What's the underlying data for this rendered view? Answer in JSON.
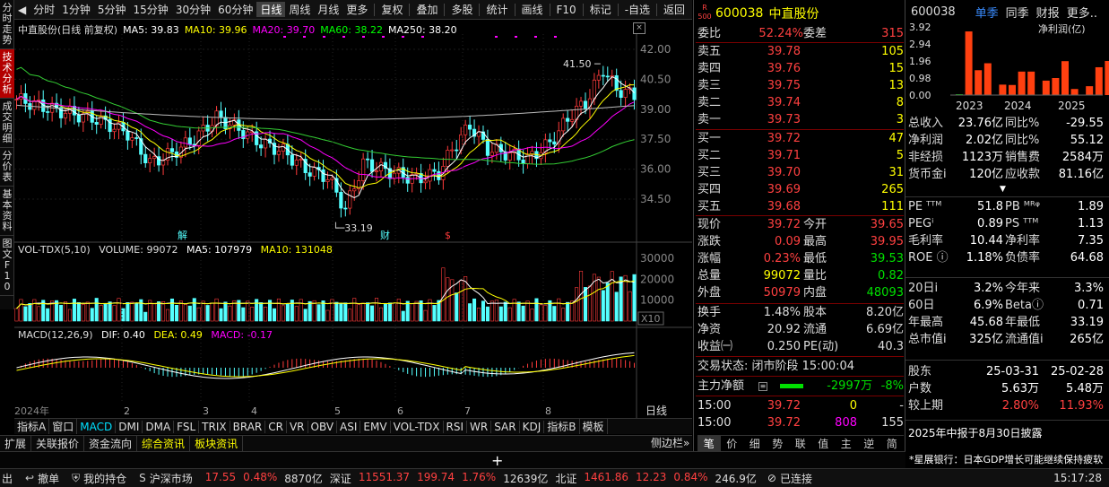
{
  "left_tabs": [
    "分时走势",
    "技术分析",
    "成交明细",
    "分价表",
    "基本资料",
    "图文F10"
  ],
  "toolbar": {
    "periods": [
      "分时",
      "1分钟",
      "5分钟",
      "15分钟",
      "30分钟",
      "60分钟",
      "日线",
      "周线",
      "月线",
      "更多"
    ],
    "active": "日线",
    "tools": [
      "复权",
      "叠加",
      "多股",
      "统计",
      "画线",
      "F10",
      "标记",
      "-自选",
      "返回"
    ]
  },
  "chart": {
    "title": "中直股份(日线 前复权)",
    "ma": [
      {
        "label": "MA5: 39.83",
        "color": "#ffffff"
      },
      {
        "label": "MA10: 39.96",
        "color": "#ffff00"
      },
      {
        "label": "MA20: 39.70",
        "color": "#ff00ff"
      },
      {
        "label": "MA60: 38.22",
        "color": "#00ff00"
      },
      {
        "label": "MA250: 38.20",
        "color": "#ffffff"
      }
    ],
    "price_ticks": [
      "42.00",
      "40.50",
      "39.00",
      "37.50",
      "36.00",
      "34.50"
    ],
    "high_label": "41.50",
    "low_label": "33.19",
    "months": [
      "2",
      "3",
      "4",
      "5",
      "6",
      "7",
      "8"
    ],
    "year_label": "2024年",
    "period_label": "日线",
    "markers": [
      "解",
      "财",
      "$"
    ]
  },
  "vol": {
    "title": "VOL-TDX(5,10)",
    "volume": "VOLUME: 99072",
    "ma5": "MA5: 107979",
    "ma10": "MA10: 131048",
    "ticks": [
      "30000",
      "20000",
      "10000"
    ],
    "unit": "X10"
  },
  "macd": {
    "title": "MACD(12,26,9)",
    "dif": "DIF: 0.40",
    "dea": "DEA: 0.49",
    "macd": "MACD: -0.17"
  },
  "bottom_tabs": [
    "指标A",
    "窗口",
    "MACD",
    "DMI",
    "DMA",
    "FSL",
    "TRIX",
    "BRAR",
    "CR",
    "VR",
    "OBV",
    "ASI",
    "EMV",
    "VOL-TDX",
    "RSI",
    "WR",
    "SAR",
    "KDJ",
    "指标B",
    "模板"
  ],
  "bottom_tabs2": [
    "扩展",
    "关联报价",
    "资金流向",
    "综合资讯",
    "板块资讯"
  ],
  "quote": {
    "code": "600038",
    "name": "中直股份",
    "rank": "500",
    "weibi_label": "委比",
    "weibi": "52.24%",
    "weicha_label": "委差",
    "weicha": "315",
    "asks": [
      {
        "label": "卖五",
        "price": "39.78",
        "vol": "105"
      },
      {
        "label": "卖四",
        "price": "39.76",
        "vol": "15"
      },
      {
        "label": "卖三",
        "price": "39.75",
        "vol": "13"
      },
      {
        "label": "卖二",
        "price": "39.74",
        "vol": "8"
      },
      {
        "label": "卖一",
        "price": "39.73",
        "vol": "3"
      }
    ],
    "bids": [
      {
        "label": "买一",
        "price": "39.72",
        "vol": "47"
      },
      {
        "label": "买二",
        "price": "39.71",
        "vol": "5"
      },
      {
        "label": "买三",
        "price": "39.70",
        "vol": "31"
      },
      {
        "label": "买四",
        "price": "39.69",
        "vol": "265"
      },
      {
        "label": "买五",
        "price": "39.68",
        "vol": "111"
      }
    ],
    "stats": [
      [
        {
          "l": "现价",
          "v": "39.72",
          "c": "#ff4040"
        },
        {
          "l": "今开",
          "v": "39.65",
          "c": "#ff4040"
        }
      ],
      [
        {
          "l": "涨跌",
          "v": "0.09",
          "c": "#ff4040"
        },
        {
          "l": "最高",
          "v": "39.95",
          "c": "#ff4040"
        }
      ],
      [
        {
          "l": "涨幅",
          "v": "0.23%",
          "c": "#ff4040"
        },
        {
          "l": "最低",
          "v": "39.53",
          "c": "#00e000"
        }
      ],
      [
        {
          "l": "总量",
          "v": "99072",
          "c": "#ffff00"
        },
        {
          "l": "量比",
          "v": "0.82",
          "c": "#00e000"
        }
      ],
      [
        {
          "l": "外盘",
          "v": "50979",
          "c": "#ff4040"
        },
        {
          "l": "内盘",
          "v": "48093",
          "c": "#00e000"
        }
      ],
      [
        {
          "l": "换手",
          "v": "1.48%",
          "c": "#ddd"
        },
        {
          "l": "股本",
          "v": "8.20亿",
          "c": "#ddd"
        }
      ],
      [
        {
          "l": "净资",
          "v": "20.92",
          "c": "#ddd"
        },
        {
          "l": "流通",
          "v": "6.69亿",
          "c": "#ddd"
        }
      ],
      [
        {
          "l": "收益㈠",
          "v": "0.250",
          "c": "#ddd"
        },
        {
          "l": "PE(动)",
          "v": "40.3",
          "c": "#ddd"
        }
      ]
    ],
    "trade_status": "交易状态: 闭市阶段 15:00:04",
    "main_flow_label": "主力净额",
    "main_flow": "-2997万",
    "main_flow_pct": "-8%",
    "ticks": [
      {
        "t": "15:00",
        "p": "39.72",
        "v": "0",
        "x": "-"
      },
      {
        "t": "15:00",
        "p": "39.72",
        "v": "808",
        "x": "155"
      }
    ],
    "bottom_tabs": [
      "笔",
      "价",
      "细",
      "势",
      "联",
      "值",
      "主",
      "逆",
      "简"
    ]
  },
  "fin": {
    "code": "600038",
    "tabs": [
      "单季",
      "同季",
      "财报",
      "更多.."
    ],
    "chart_title": "净利润(亿)",
    "y_ticks": [
      "3.92",
      "2.94",
      "1.96",
      "0.98",
      "0.00"
    ],
    "years": [
      "2023",
      "2024",
      "2025"
    ],
    "bars": [
      0.05,
      3.66,
      1.43,
      1.83,
      0.6,
      0.58,
      1.35,
      1.35,
      0.83,
      0.98,
      1.95,
      0.35,
      0.51,
      1.6,
      1.96
    ],
    "rows": [
      [
        {
          "l": "总收入",
          "v": "23.76亿"
        },
        {
          "l": "同比%",
          "v": "-29.55"
        }
      ],
      [
        {
          "l": "净利润",
          "v": "2.02亿"
        },
        {
          "l": "同比%",
          "v": "55.12"
        }
      ],
      [
        {
          "l": "非经损",
          "v": "1123万"
        },
        {
          "l": "销售费",
          "v": "2584万"
        }
      ],
      [
        {
          "l": "货币金ⅰ",
          "v": "120亿"
        },
        {
          "l": "应收款",
          "v": "81.16亿"
        }
      ]
    ],
    "rows2": [
      [
        {
          "l": "PE ᵀᵀᴹ",
          "v": "51.8"
        },
        {
          "l": "PB ᴹᴿᵠ",
          "v": "1.89"
        }
      ],
      [
        {
          "l": "PEGⁱ",
          "v": "0.89"
        },
        {
          "l": "PS ᵀᵀᴹ",
          "v": "1.13"
        }
      ],
      [
        {
          "l": "毛利率",
          "v": "10.44"
        },
        {
          "l": "净利率",
          "v": "7.35"
        }
      ],
      [
        {
          "l": "ROE ⓘ",
          "v": "1.18%"
        },
        {
          "l": "负债率",
          "v": "64.68"
        }
      ]
    ],
    "rows3": [
      [
        {
          "l": "20日ⅰ",
          "v": "3.2%"
        },
        {
          "l": "今年来",
          "v": "3.3%"
        }
      ],
      [
        {
          "l": "60日",
          "v": "6.9%"
        },
        {
          "l": "Betaⓘ",
          "v": "0.71"
        }
      ],
      [
        {
          "l": "年最高",
          "v": "45.68"
        },
        {
          "l": "年最低",
          "v": "33.19"
        }
      ],
      [
        {
          "l": "总市值ⅰ",
          "v": "325亿"
        },
        {
          "l": "流通值ⅰ",
          "v": "265亿"
        }
      ]
    ],
    "holders": [
      {
        "l": "股东",
        "a": "25-03-31",
        "b": "25-02-28"
      },
      {
        "l": "户数",
        "a": "5.63万",
        "b": "5.48万"
      },
      {
        "l": "较上期",
        "a": "2.80%",
        "b": "11.93%"
      }
    ],
    "report_note": "2025年中报于8月30日披露"
  },
  "right_bottom": {
    "tabs": [
      "侧边栏»"
    ],
    "news": "*星展银行：日本GDP增长可能继续保持疲软"
  },
  "status": {
    "items": [
      {
        "t": "出",
        "c": "#ddd"
      },
      {
        "t": "撤单",
        "c": "#ddd"
      },
      {
        "t": "我的持仓",
        "c": "#ddd"
      },
      {
        "t": "沪深市场",
        "c": "#ddd"
      }
    ],
    "index": [
      {
        "t": "17.55",
        "c": "#ff4040"
      },
      {
        "t": "0.48%",
        "c": "#ff4040"
      },
      {
        "t": "8870亿",
        "c": "#ddd"
      },
      {
        "t": "深证",
        "c": "#ddd"
      },
      {
        "t": "11551.37",
        "c": "#ff4040"
      },
      {
        "t": "199.74",
        "c": "#ff4040"
      },
      {
        "t": "1.76%",
        "c": "#ff4040"
      },
      {
        "t": "12639亿",
        "c": "#ddd"
      },
      {
        "t": "北证",
        "c": "#ddd"
      },
      {
        "t": "1461.86",
        "c": "#ff4040"
      },
      {
        "t": "12.23",
        "c": "#ff4040"
      },
      {
        "t": "0.84%",
        "c": "#ff4040"
      },
      {
        "t": "246.9亿",
        "c": "#ddd"
      }
    ],
    "conn": "已连接",
    "time": "15:17:28"
  }
}
